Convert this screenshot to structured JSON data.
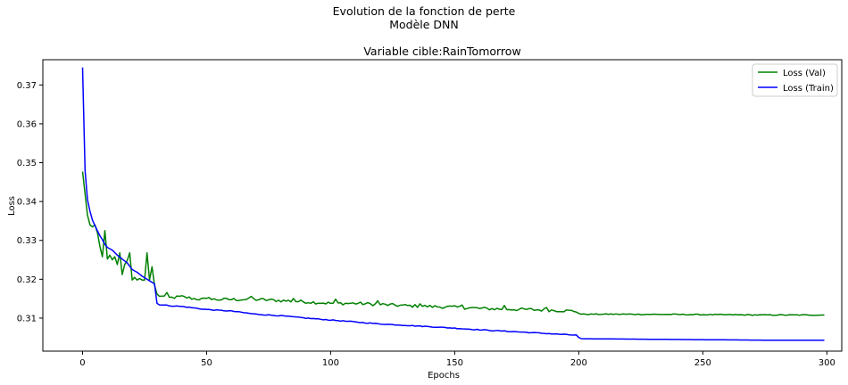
{
  "figure": {
    "title_line1": "Evolution de la fonction de perte",
    "title_line2": "Modèle DNN"
  },
  "chart_data": {
    "type": "line",
    "title": "Variable cible:RainTomorrow",
    "xlabel": "Epochs",
    "ylabel": "Loss",
    "xlim": [
      -16,
      306
    ],
    "ylim": [
      0.3015,
      0.3765
    ],
    "xticks": [
      0,
      50,
      100,
      150,
      200,
      250,
      300
    ],
    "yticks": [
      0.31,
      0.32,
      0.33,
      0.34,
      0.35,
      0.36,
      0.37
    ],
    "legend": {
      "placement": "upper right",
      "entries": [
        "Loss (Val)",
        "Loss (Train)"
      ]
    },
    "grid": false,
    "series": [
      {
        "name": "Loss (Val)",
        "color": "#008000",
        "keypoints": [
          [
            0,
            0.3477
          ],
          [
            1,
            0.342
          ],
          [
            2,
            0.3365
          ],
          [
            3,
            0.334
          ],
          [
            4,
            0.3335
          ],
          [
            5,
            0.334
          ],
          [
            6,
            0.332
          ],
          [
            7,
            0.3285
          ],
          [
            8,
            0.3258
          ],
          [
            9,
            0.3325
          ],
          [
            10,
            0.3252
          ],
          [
            11,
            0.3262
          ],
          [
            12,
            0.325
          ],
          [
            13,
            0.3258
          ],
          [
            14,
            0.3238
          ],
          [
            15,
            0.3268
          ],
          [
            16,
            0.3212
          ],
          [
            17,
            0.3238
          ],
          [
            18,
            0.3248
          ],
          [
            19,
            0.3268
          ],
          [
            20,
            0.3198
          ],
          [
            21,
            0.3205
          ],
          [
            22,
            0.3198
          ],
          [
            23,
            0.3202
          ],
          [
            24,
            0.3198
          ],
          [
            25,
            0.3198
          ],
          [
            26,
            0.3268
          ],
          [
            27,
            0.3198
          ],
          [
            28,
            0.3232
          ],
          [
            29,
            0.3185
          ],
          [
            30,
            0.3162
          ],
          [
            31,
            0.3155
          ],
          [
            32,
            0.3158
          ],
          [
            35,
            0.3152
          ],
          [
            40,
            0.3155
          ],
          [
            45,
            0.315
          ],
          [
            50,
            0.3148
          ],
          [
            60,
            0.3148
          ],
          [
            70,
            0.3148
          ],
          [
            80,
            0.3145
          ],
          [
            90,
            0.3142
          ],
          [
            100,
            0.3138
          ],
          [
            110,
            0.3138
          ],
          [
            120,
            0.3135
          ],
          [
            130,
            0.3132
          ],
          [
            140,
            0.313
          ],
          [
            150,
            0.3128
          ],
          [
            160,
            0.3125
          ],
          [
            170,
            0.3123
          ],
          [
            180,
            0.3122
          ],
          [
            190,
            0.312
          ],
          [
            199,
            0.3118
          ],
          [
            200,
            0.3112
          ],
          [
            201,
            0.311
          ],
          [
            220,
            0.311
          ],
          [
            250,
            0.3109
          ],
          [
            275,
            0.3108
          ],
          [
            290,
            0.3108
          ],
          [
            299,
            0.3108
          ]
        ],
        "noise": [
          [
            30,
            200,
            0.0004
          ],
          [
            200,
            300,
            0.00012
          ]
        ]
      },
      {
        "name": "Loss (Train)",
        "color": "#0000ff",
        "keypoints": [
          [
            0,
            0.3745
          ],
          [
            1,
            0.348
          ],
          [
            2,
            0.3405
          ],
          [
            3,
            0.3375
          ],
          [
            4,
            0.3352
          ],
          [
            5,
            0.3338
          ],
          [
            6,
            0.3325
          ],
          [
            7,
            0.3312
          ],
          [
            8,
            0.3302
          ],
          [
            9,
            0.329
          ],
          [
            10,
            0.3282
          ],
          [
            12,
            0.3275
          ],
          [
            14,
            0.3262
          ],
          [
            16,
            0.3252
          ],
          [
            18,
            0.3242
          ],
          [
            20,
            0.3225
          ],
          [
            22,
            0.3218
          ],
          [
            24,
            0.3208
          ],
          [
            26,
            0.32
          ],
          [
            28,
            0.3192
          ],
          [
            29,
            0.3188
          ],
          [
            30,
            0.3138
          ],
          [
            31,
            0.3135
          ],
          [
            35,
            0.3132
          ],
          [
            40,
            0.313
          ],
          [
            50,
            0.3122
          ],
          [
            60,
            0.3118
          ],
          [
            70,
            0.311
          ],
          [
            80,
            0.3106
          ],
          [
            90,
            0.31
          ],
          [
            100,
            0.3095
          ],
          [
            120,
            0.3085
          ],
          [
            140,
            0.3078
          ],
          [
            160,
            0.307
          ],
          [
            180,
            0.3063
          ],
          [
            199,
            0.3056
          ],
          [
            200,
            0.305
          ],
          [
            201,
            0.3047
          ],
          [
            220,
            0.3046
          ],
          [
            240,
            0.3045
          ],
          [
            260,
            0.3044
          ],
          [
            280,
            0.3043
          ],
          [
            299,
            0.3043
          ]
        ],
        "noise": [
          [
            30,
            200,
            0.0001
          ]
        ]
      }
    ]
  }
}
